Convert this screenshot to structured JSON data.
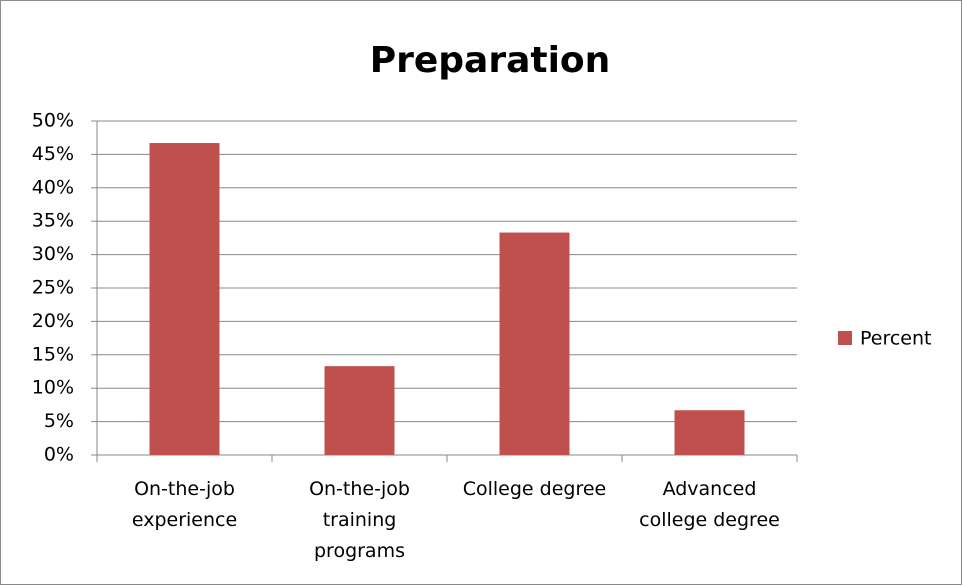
{
  "chart_data": {
    "type": "bar",
    "title": "Preparation",
    "categories": [
      "On-the-job experience",
      "On-the-job training programs",
      "College degree",
      "Advanced college degree"
    ],
    "series": [
      {
        "name": "Percent",
        "color": "#c0504d",
        "values": [
          46.7,
          13.3,
          33.3,
          6.7
        ]
      }
    ],
    "ylim": [
      0,
      50
    ],
    "yticks": [
      {
        "value": 0,
        "label": "0%"
      },
      {
        "value": 5,
        "label": "5%"
      },
      {
        "value": 10,
        "label": "10%"
      },
      {
        "value": 15,
        "label": "15%"
      },
      {
        "value": 20,
        "label": "20%"
      },
      {
        "value": 25,
        "label": "25%"
      },
      {
        "value": 30,
        "label": "30%"
      },
      {
        "value": 35,
        "label": "35%"
      },
      {
        "value": 40,
        "label": "40%"
      },
      {
        "value": 45,
        "label": "45%"
      },
      {
        "value": 50,
        "label": "50%"
      }
    ],
    "grid": true,
    "legend": "right"
  }
}
